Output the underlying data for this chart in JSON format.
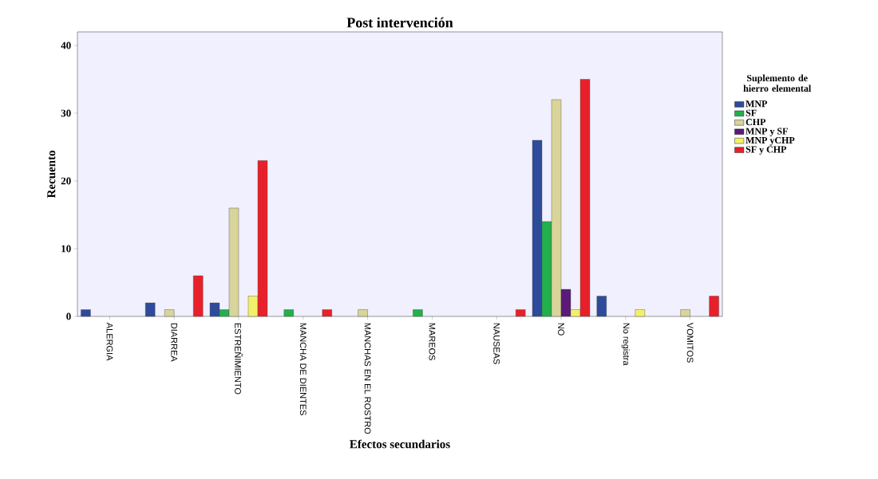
{
  "chart_data": {
    "type": "bar",
    "title": "Post intervención",
    "xlabel": "Efectos secundarios",
    "ylabel": "Recuento",
    "legend_title": "Suplemento de hierro elemental",
    "categories": [
      "ALERGIA",
      "DIARREA",
      "ESTREÑIMIENTO",
      "MANCHA DE DIENTES",
      "MANCHAS EN EL ROSTRO",
      "MAREOS",
      "NAUSEAS",
      "NO",
      "No registra",
      "VOMITOS"
    ],
    "series": [
      {
        "name": "MNP",
        "color": "#2e4b9b",
        "values": [
          1,
          2,
          2,
          null,
          null,
          null,
          null,
          26,
          3,
          null
        ]
      },
      {
        "name": "SF",
        "color": "#22b04c",
        "values": [
          null,
          null,
          1,
          1,
          null,
          1,
          null,
          14,
          null,
          null
        ]
      },
      {
        "name": "CHP",
        "color": "#d8d49a",
        "values": [
          null,
          1,
          16,
          null,
          1,
          null,
          null,
          32,
          null,
          1
        ]
      },
      {
        "name": "MNP y SF",
        "color": "#5a1a78",
        "values": [
          null,
          null,
          null,
          null,
          null,
          null,
          null,
          4,
          null,
          null
        ]
      },
      {
        "name": "MNP yCHP",
        "color": "#f2f06a",
        "values": [
          null,
          null,
          3,
          null,
          null,
          null,
          null,
          1,
          1,
          null
        ]
      },
      {
        "name": "SF y CHP",
        "color": "#e8202a",
        "values": [
          null,
          6,
          23,
          1,
          null,
          null,
          1,
          35,
          null,
          3
        ]
      }
    ],
    "ylim": [
      0,
      42
    ],
    "yticks": [
      0,
      10,
      20,
      30,
      40
    ],
    "legend": "right"
  }
}
